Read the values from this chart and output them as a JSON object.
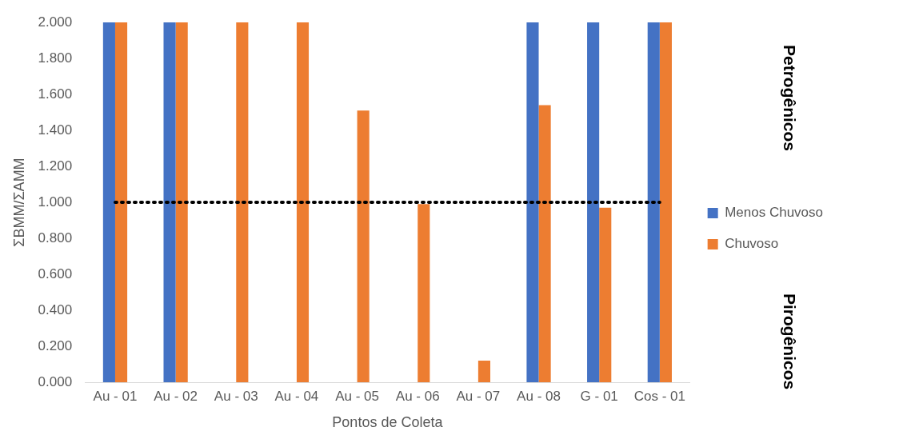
{
  "chart_data": {
    "type": "bar",
    "xlabel": "Pontos de Coleta",
    "ylabel": "ΣBMM/ΣAMM",
    "categories": [
      "Au - 01",
      "Au - 02",
      "Au - 03",
      "Au - 04",
      "Au - 05",
      "Au - 06",
      "Au - 07",
      "Au - 08",
      "G - 01",
      "Cos - 01"
    ],
    "series": [
      {
        "name": "Menos Chuvoso",
        "color": "#4472c4",
        "values": [
          2,
          2,
          0,
          0,
          0,
          0,
          0,
          2,
          2,
          2
        ]
      },
      {
        "name": "Chuvoso",
        "color": "#ed7d31",
        "values": [
          2,
          2,
          2,
          2,
          1.51,
          0.99,
          0.12,
          1.54,
          0.97,
          2
        ]
      }
    ],
    "ylim": [
      0,
      2
    ],
    "yticks": [
      {
        "value": 0,
        "label": "0.000"
      },
      {
        "value": 0.2,
        "label": "0.200"
      },
      {
        "value": 0.4,
        "label": "0.400"
      },
      {
        "value": 0.6,
        "label": "0.600"
      },
      {
        "value": 0.8,
        "label": "0.800"
      },
      {
        "value": 1,
        "label": "1.000"
      },
      {
        "value": 1.2,
        "label": "1.200"
      },
      {
        "value": 1.4,
        "label": "1.400"
      },
      {
        "value": 1.6,
        "label": "1.600"
      },
      {
        "value": 1.8,
        "label": "1.800"
      },
      {
        "value": 2,
        "label": "2.000"
      }
    ],
    "ref_lines": [
      {
        "axis": "y",
        "value": 1,
        "color": "#000000",
        "line_style": "dotted"
      }
    ],
    "annotations": [
      "Petrogênicos",
      "Pirogênicos"
    ],
    "grid": false,
    "legend": "right"
  }
}
